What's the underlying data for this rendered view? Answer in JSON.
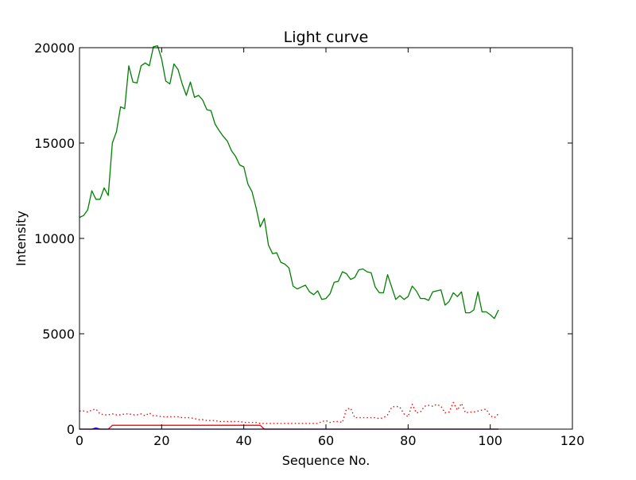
{
  "chart_data": {
    "type": "line",
    "title": "Light curve",
    "xlabel": "Sequence No.",
    "ylabel": "Intensity",
    "xlim": [
      0,
      120
    ],
    "ylim": [
      0,
      20000
    ],
    "xticks": [
      0,
      20,
      40,
      60,
      80,
      100,
      120
    ],
    "yticks": [
      0,
      5000,
      10000,
      15000,
      20000
    ],
    "grid": false,
    "series": [
      {
        "color": "#008000",
        "style": "solid",
        "x_start": 0,
        "values": [
          11100,
          11200,
          11500,
          12500,
          12050,
          12050,
          12650,
          12250,
          15000,
          15600,
          16900,
          16800,
          19050,
          18200,
          18150,
          19050,
          19200,
          19050,
          20050,
          20100,
          19400,
          18250,
          18100,
          19150,
          18850,
          18100,
          17500,
          18200,
          17400,
          17500,
          17250,
          16750,
          16700,
          16000,
          15650,
          15350,
          15100,
          14600,
          14300,
          13850,
          13750,
          12850,
          12450,
          11600,
          10600,
          11050,
          9650,
          9200,
          9250,
          8750,
          8650,
          8450,
          7500,
          7350,
          7450,
          7550,
          7200,
          7050,
          7250,
          6800,
          6850,
          7100,
          7700,
          7750,
          8250,
          8150,
          7850,
          7950,
          8350,
          8400,
          8250,
          8200,
          7450,
          7150,
          7150,
          8100,
          7450,
          6800,
          7000,
          6800,
          6950,
          7500,
          7250,
          6850,
          6850,
          6750,
          7200,
          7250,
          7300,
          6500,
          6700,
          7150,
          6950,
          7200,
          6100,
          6100,
          6250,
          7200,
          6150,
          6150,
          6000,
          5800,
          6250
        ]
      },
      {
        "color": "#ff0000",
        "style": "dotted",
        "x_start": 0,
        "values": [
          950,
          950,
          900,
          1000,
          1050,
          800,
          750,
          750,
          800,
          750,
          750,
          800,
          800,
          750,
          750,
          800,
          700,
          850,
          700,
          700,
          650,
          650,
          650,
          650,
          650,
          600,
          600,
          600,
          550,
          500,
          500,
          450,
          450,
          450,
          400,
          400,
          400,
          400,
          400,
          400,
          350,
          350,
          350,
          350,
          300,
          300,
          300,
          300,
          300,
          300,
          300,
          300,
          300,
          300,
          300,
          300,
          300,
          300,
          300,
          400,
          450,
          350,
          400,
          400,
          350,
          1050,
          1100,
          600,
          600,
          600,
          600,
          600,
          600,
          550,
          600,
          750,
          1150,
          1200,
          1150,
          800,
          650,
          1300,
          850,
          900,
          1200,
          1250,
          1200,
          1300,
          1200,
          850,
          900,
          1400,
          1000,
          1350,
          850,
          900,
          900,
          950,
          1000,
          1050,
          700,
          600,
          800
        ]
      },
      {
        "color": "#ff0000",
        "style": "solid",
        "x": [
          0,
          7,
          8,
          44,
          45,
          102
        ],
        "y": [
          0,
          0,
          200,
          200,
          0,
          0
        ]
      },
      {
        "color": "#0000ff",
        "style": "solid",
        "x": [
          0,
          3,
          4,
          5,
          102
        ],
        "y": [
          0,
          0,
          60,
          0,
          0
        ]
      }
    ]
  }
}
